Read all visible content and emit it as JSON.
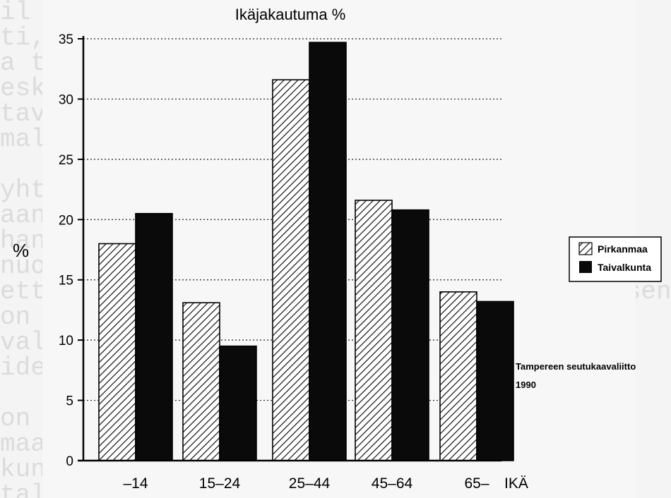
{
  "background_text": [
    "il lisaantymista seuraavan kymmenen",
    "ti, jolla on suuri merkitys seutukunnan",
    "a taloudelle kuin myos kunnalle itselleen.",
    "eskimaaraisesti heilla on vahvat siteet",
    "tavat ja uskovat kuntaan, jota he",
    "malla kanssa kesaasukkaita",
    "",
    "yhteisymmarrys on tarkka asia mutta",
    "aan, mika tekee hyvin selvaksi niiden",
    "han kannalta olennaista ja merkittavaa",
    "nuorten ikaluokkien nykytila ja kehitys",
    "etta ikaluokat ovat tiedossa ja suhteellisen",
    "on kuitenkin huomattava etta ikarakenne",
    "valisia eroja hyvin merkittavasti",
    "iden nuorten ikaluokkien jakauma",
    "",
    "on tyoikainen vaesto suhteellisen suuri",
    "maatalous ja perinteiset elinkeinot",
    "kuntien kehitys nojaa nykyisiin",
    "talouden muutos vaikuttaa seutuun"
  ],
  "chart_data": {
    "type": "bar",
    "title": "Ikäjakautuma %",
    "ylabel": "%",
    "xlabel": "IKÄ",
    "categories": [
      "–14",
      "15–24",
      "25–44",
      "45–64",
      "65–"
    ],
    "series": [
      {
        "name": "Pirkanmaa",
        "values": [
          18,
          13.1,
          31.6,
          21.6,
          14
        ],
        "pattern": "hatch"
      },
      {
        "name": "Taivalkunta",
        "values": [
          20.5,
          9.5,
          34.7,
          20.8,
          13.2
        ],
        "pattern": "solid"
      }
    ],
    "ylim": [
      0,
      35
    ],
    "yticks": [
      0,
      5,
      10,
      15,
      20,
      25,
      30,
      35
    ],
    "grid": "dotted horizontal",
    "legend_position": "right",
    "source": [
      "Tampereen seutukaavaliitto",
      "1990"
    ],
    "colors": {
      "solid": "#0a0a0a",
      "hatch_stroke": "#111111",
      "axis": "#000000"
    }
  }
}
